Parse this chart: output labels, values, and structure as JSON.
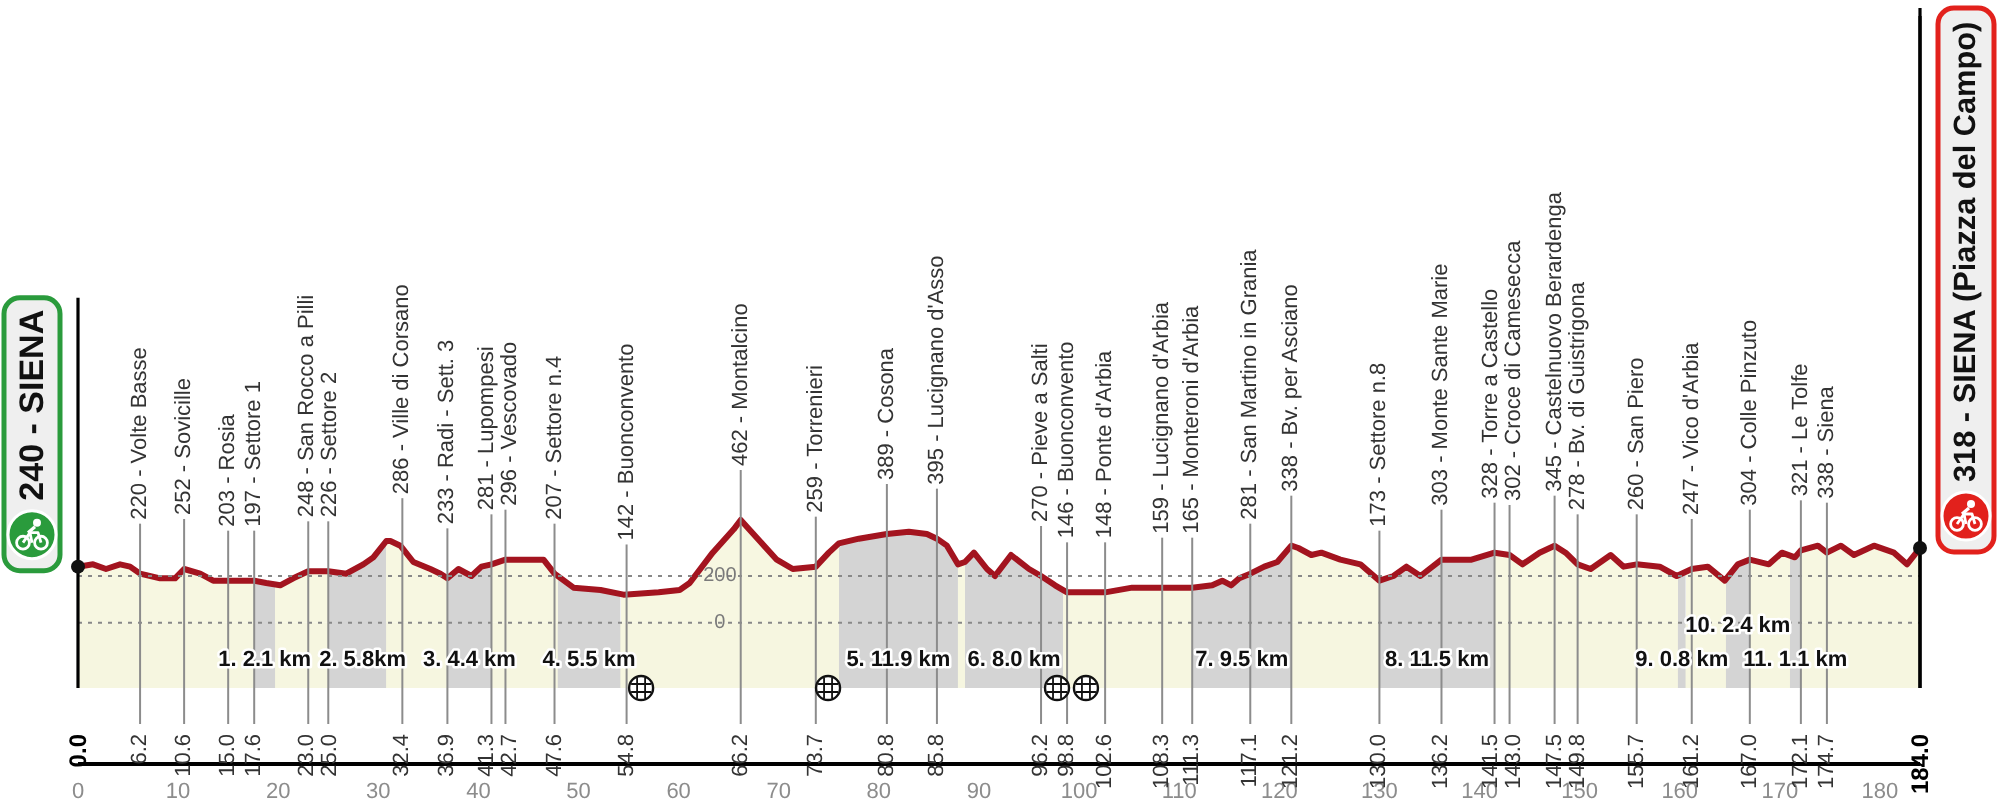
{
  "chart_data": {
    "type": "area",
    "x": [
      0,
      1.5,
      2.8,
      4.2,
      5.2,
      6.2,
      8.2,
      9.7,
      10.6,
      12.2,
      13.5,
      15,
      16.8,
      17.6,
      18.8,
      20.2,
      21.5,
      23,
      25,
      26.8,
      28.5,
      29.5,
      30.8,
      31.2,
      32.2,
      33.5,
      35.2,
      36.2,
      36.9,
      38,
      39.3,
      40.3,
      41.3,
      42.7,
      44.8,
      46.5,
      47.6,
      49.5,
      52.2,
      54.5,
      58,
      60.1,
      61.1,
      63.4,
      65.5,
      66.2,
      68.1,
      69.8,
      71.4,
      73.7,
      75,
      76,
      78,
      80.8,
      83,
      84.8,
      85.8,
      86.8,
      87.9,
      88.6,
      89.5,
      90.8,
      91.6,
      93.2,
      95,
      96.2,
      97.6,
      98.8,
      100.8,
      102.6,
      105.3,
      106.5,
      108.3,
      111.3,
      113.3,
      114.3,
      115.2,
      116,
      117.1,
      118.5,
      119.8,
      121.2,
      121.9,
      123.2,
      124.2,
      126.1,
      128.1,
      130,
      131.4,
      132.7,
      134.1,
      136.2,
      137.5,
      139.2,
      141.5,
      143,
      144.3,
      146,
      147.5,
      148.6,
      149.8,
      151.1,
      153.1,
      154.4,
      155.7,
      158,
      159.7,
      161.2,
      162.8,
      164.5,
      165.8,
      167,
      168.9,
      170.2,
      171.5,
      172.1,
      173.8,
      174.7,
      176.1,
      177.4,
      179.4,
      181.4,
      182.7,
      184
    ],
    "values": [
      240,
      250,
      230,
      250,
      240,
      210,
      190,
      190,
      230,
      210,
      180,
      180,
      180,
      180,
      170,
      160,
      190,
      220,
      220,
      210,
      250,
      280,
      350,
      350,
      330,
      260,
      230,
      210,
      190,
      230,
      200,
      240,
      250,
      270,
      270,
      270,
      210,
      150,
      140,
      120,
      130,
      140,
      170,
      300,
      400,
      440,
      350,
      270,
      230,
      240,
      300,
      340,
      360,
      380,
      390,
      380,
      360,
      330,
      250,
      260,
      300,
      230,
      200,
      290,
      230,
      200,
      160,
      130,
      130,
      130,
      150,
      150,
      150,
      150,
      160,
      180,
      160,
      190,
      210,
      240,
      260,
      330,
      320,
      290,
      300,
      270,
      250,
      180,
      200,
      240,
      200,
      270,
      270,
      270,
      300,
      290,
      250,
      300,
      330,
      300,
      250,
      230,
      290,
      240,
      250,
      240,
      200,
      230,
      240,
      180,
      250,
      270,
      250,
      300,
      280,
      310,
      330,
      300,
      330,
      290,
      330,
      300,
      250,
      320
    ],
    "color": "#f7f7e1",
    "xlim": [
      0,
      184
    ],
    "xticks": [
      0,
      10,
      20,
      30,
      40,
      50,
      60,
      70,
      80,
      90,
      100,
      110,
      120,
      130,
      140,
      150,
      160,
      170,
      180
    ],
    "x2lim": [
      0,
      184
    ],
    "x2ticks": [
      {
        "value": 0,
        "label": "0.0"
      },
      6.2,
      10.6,
      {
        "value": 15,
        "label": "15.0"
      },
      17.6,
      {
        "value": 23,
        "label": "23.0"
      },
      {
        "value": 25,
        "label": "25.0"
      },
      32.4,
      36.9,
      41.3,
      42.7,
      47.6,
      54.8,
      66.2,
      73.7,
      80.8,
      85.8,
      96.2,
      98.8,
      102.6,
      108.3,
      111.3,
      117.1,
      121.2,
      {
        "value": 130,
        "label": "130.0"
      },
      136.2,
      141.5,
      {
        "value": 143,
        "label": "143.0"
      },
      147.5,
      149.8,
      155.7,
      161.2,
      {
        "value": 167,
        "label": "167.0"
      },
      172.1,
      174.7,
      {
        "value": 184,
        "label": "184.0"
      }
    ],
    "ylim": [
      -280,
      2600
    ],
    "yticks": [
      0,
      200
    ],
    "grid": "y",
    "bands": [
      {
        "axis": "x",
        "from": 17.6,
        "to": 19.7,
        "label": "1. 2.1 km",
        "color": "#d4d4d4"
      },
      {
        "axis": "x",
        "from": 25.0,
        "to": 30.8,
        "label": "2. 5.8km",
        "color": "#d4d4d4"
      },
      {
        "axis": "x",
        "from": 36.9,
        "to": 41.3,
        "label": "3. 4.4 km",
        "color": "#d4d4d4"
      },
      {
        "axis": "x",
        "from": 47.9,
        "to": 54.2,
        "label": "4. 5.5 km",
        "color": "#d4d4d4"
      },
      {
        "axis": "x",
        "from": 76.0,
        "to": 87.9,
        "label": "5. 11.9 km",
        "color": "#d4d4d4"
      },
      {
        "axis": "x",
        "from": 88.6,
        "to": 98.4,
        "label": "6. 8.0 km",
        "color": "#d4d4d4"
      },
      {
        "axis": "x",
        "from": 111.3,
        "to": 121.2,
        "label": "7. 9.5 km",
        "color": "#d4d4d4"
      },
      {
        "axis": "x",
        "from": 130.0,
        "to": 141.5,
        "label": "8. 11.5 km",
        "color": "#d4d4d4"
      },
      {
        "axis": "x",
        "from": 159.8,
        "to": 160.6,
        "label": "9. 0.8 km",
        "color": "#d4d4d4"
      },
      {
        "axis": "x",
        "from": 164.6,
        "to": 167.0,
        "label": "10. 2.4 km",
        "color": "#d4d4d4"
      },
      {
        "axis": "x",
        "from": 171.0,
        "to": 172.1,
        "label": "11. 1.1 km",
        "color": "#d4d4d4"
      }
    ],
    "ref_lines": [
      {
        "axis": "x",
        "value": 0,
        "label": "240 - SIENA"
      },
      {
        "axis": "x",
        "value": 6.2,
        "label": "220 - Volte Basse"
      },
      {
        "axis": "x",
        "value": 10.6,
        "label": "252 - Sovicille"
      },
      {
        "axis": "x",
        "value": 15.0,
        "label": "203 - Rosia"
      },
      {
        "axis": "x",
        "value": 17.6,
        "label": "197 - Settore 1"
      },
      {
        "axis": "x",
        "value": 23.0,
        "label": "248 - San Rocco a Pilli"
      },
      {
        "axis": "x",
        "value": 25.0,
        "label": "226 - Settore 2"
      },
      {
        "axis": "x",
        "value": 32.4,
        "label": "286 - Ville di Corsano"
      },
      {
        "axis": "x",
        "value": 36.9,
        "label": "233 - Radi - Sett. 3"
      },
      {
        "axis": "x",
        "value": 41.3,
        "label": "281 - Lupompesi"
      },
      {
        "axis": "x",
        "value": 42.7,
        "label": "296 - Vescovado"
      },
      {
        "axis": "x",
        "value": 47.6,
        "label": "207 - Settore n.4"
      },
      {
        "axis": "x",
        "value": 54.8,
        "label": "142 - Buonconvento"
      },
      {
        "axis": "x",
        "value": 66.2,
        "label": "462 - Montalcino"
      },
      {
        "axis": "x",
        "value": 73.7,
        "label": "259 - Torrenieri"
      },
      {
        "axis": "x",
        "value": 80.8,
        "label": "389 - Cosona"
      },
      {
        "axis": "x",
        "value": 85.8,
        "label": "395 - Lucignano d'Asso"
      },
      {
        "axis": "x",
        "value": 96.2,
        "label": "270 - Pieve a Salti"
      },
      {
        "axis": "x",
        "value": 98.8,
        "label": "146 - Buonconvento"
      },
      {
        "axis": "x",
        "value": 102.6,
        "label": "148 - Ponte d'Arbia"
      },
      {
        "axis": "x",
        "value": 108.3,
        "label": "159 - Lucignano d'Arbia"
      },
      {
        "axis": "x",
        "value": 111.3,
        "label": "165 - Monteroni d'Arbia"
      },
      {
        "axis": "x",
        "value": 117.1,
        "label": "281 - San Martino in Grania"
      },
      {
        "axis": "x",
        "value": 121.2,
        "label": "338 - Bv. per Asciano"
      },
      {
        "axis": "x",
        "value": 130.0,
        "label": "173 - Settore n.8"
      },
      {
        "axis": "x",
        "value": 136.2,
        "label": "303 - Monte Sante Marie"
      },
      {
        "axis": "x",
        "value": 141.5,
        "label": "328 - Torre a Castello"
      },
      {
        "axis": "x",
        "value": 143.0,
        "label": "302 - Croce di Camesecca"
      },
      {
        "axis": "x",
        "value": 147.5,
        "label": "345 - Castelnuovo Berardenga"
      },
      {
        "axis": "x",
        "value": 149.8,
        "label": "278 - Bv. di Guistrigona"
      },
      {
        "axis": "x",
        "value": 155.7,
        "label": "260 - San Piero"
      },
      {
        "axis": "x",
        "value": 161.2,
        "label": "247 - Vico d'Arbia"
      },
      {
        "axis": "x",
        "value": 167.0,
        "label": "304 - Colle Pinzuto"
      },
      {
        "axis": "x",
        "value": 172.1,
        "label": "321 - Le Tolfe"
      },
      {
        "axis": "x",
        "value": 174.7,
        "label": "338 - Siena"
      },
      {
        "axis": "x",
        "value": 184,
        "label": "318 - SIENA (Piazza del Campo)"
      }
    ]
  }
}
